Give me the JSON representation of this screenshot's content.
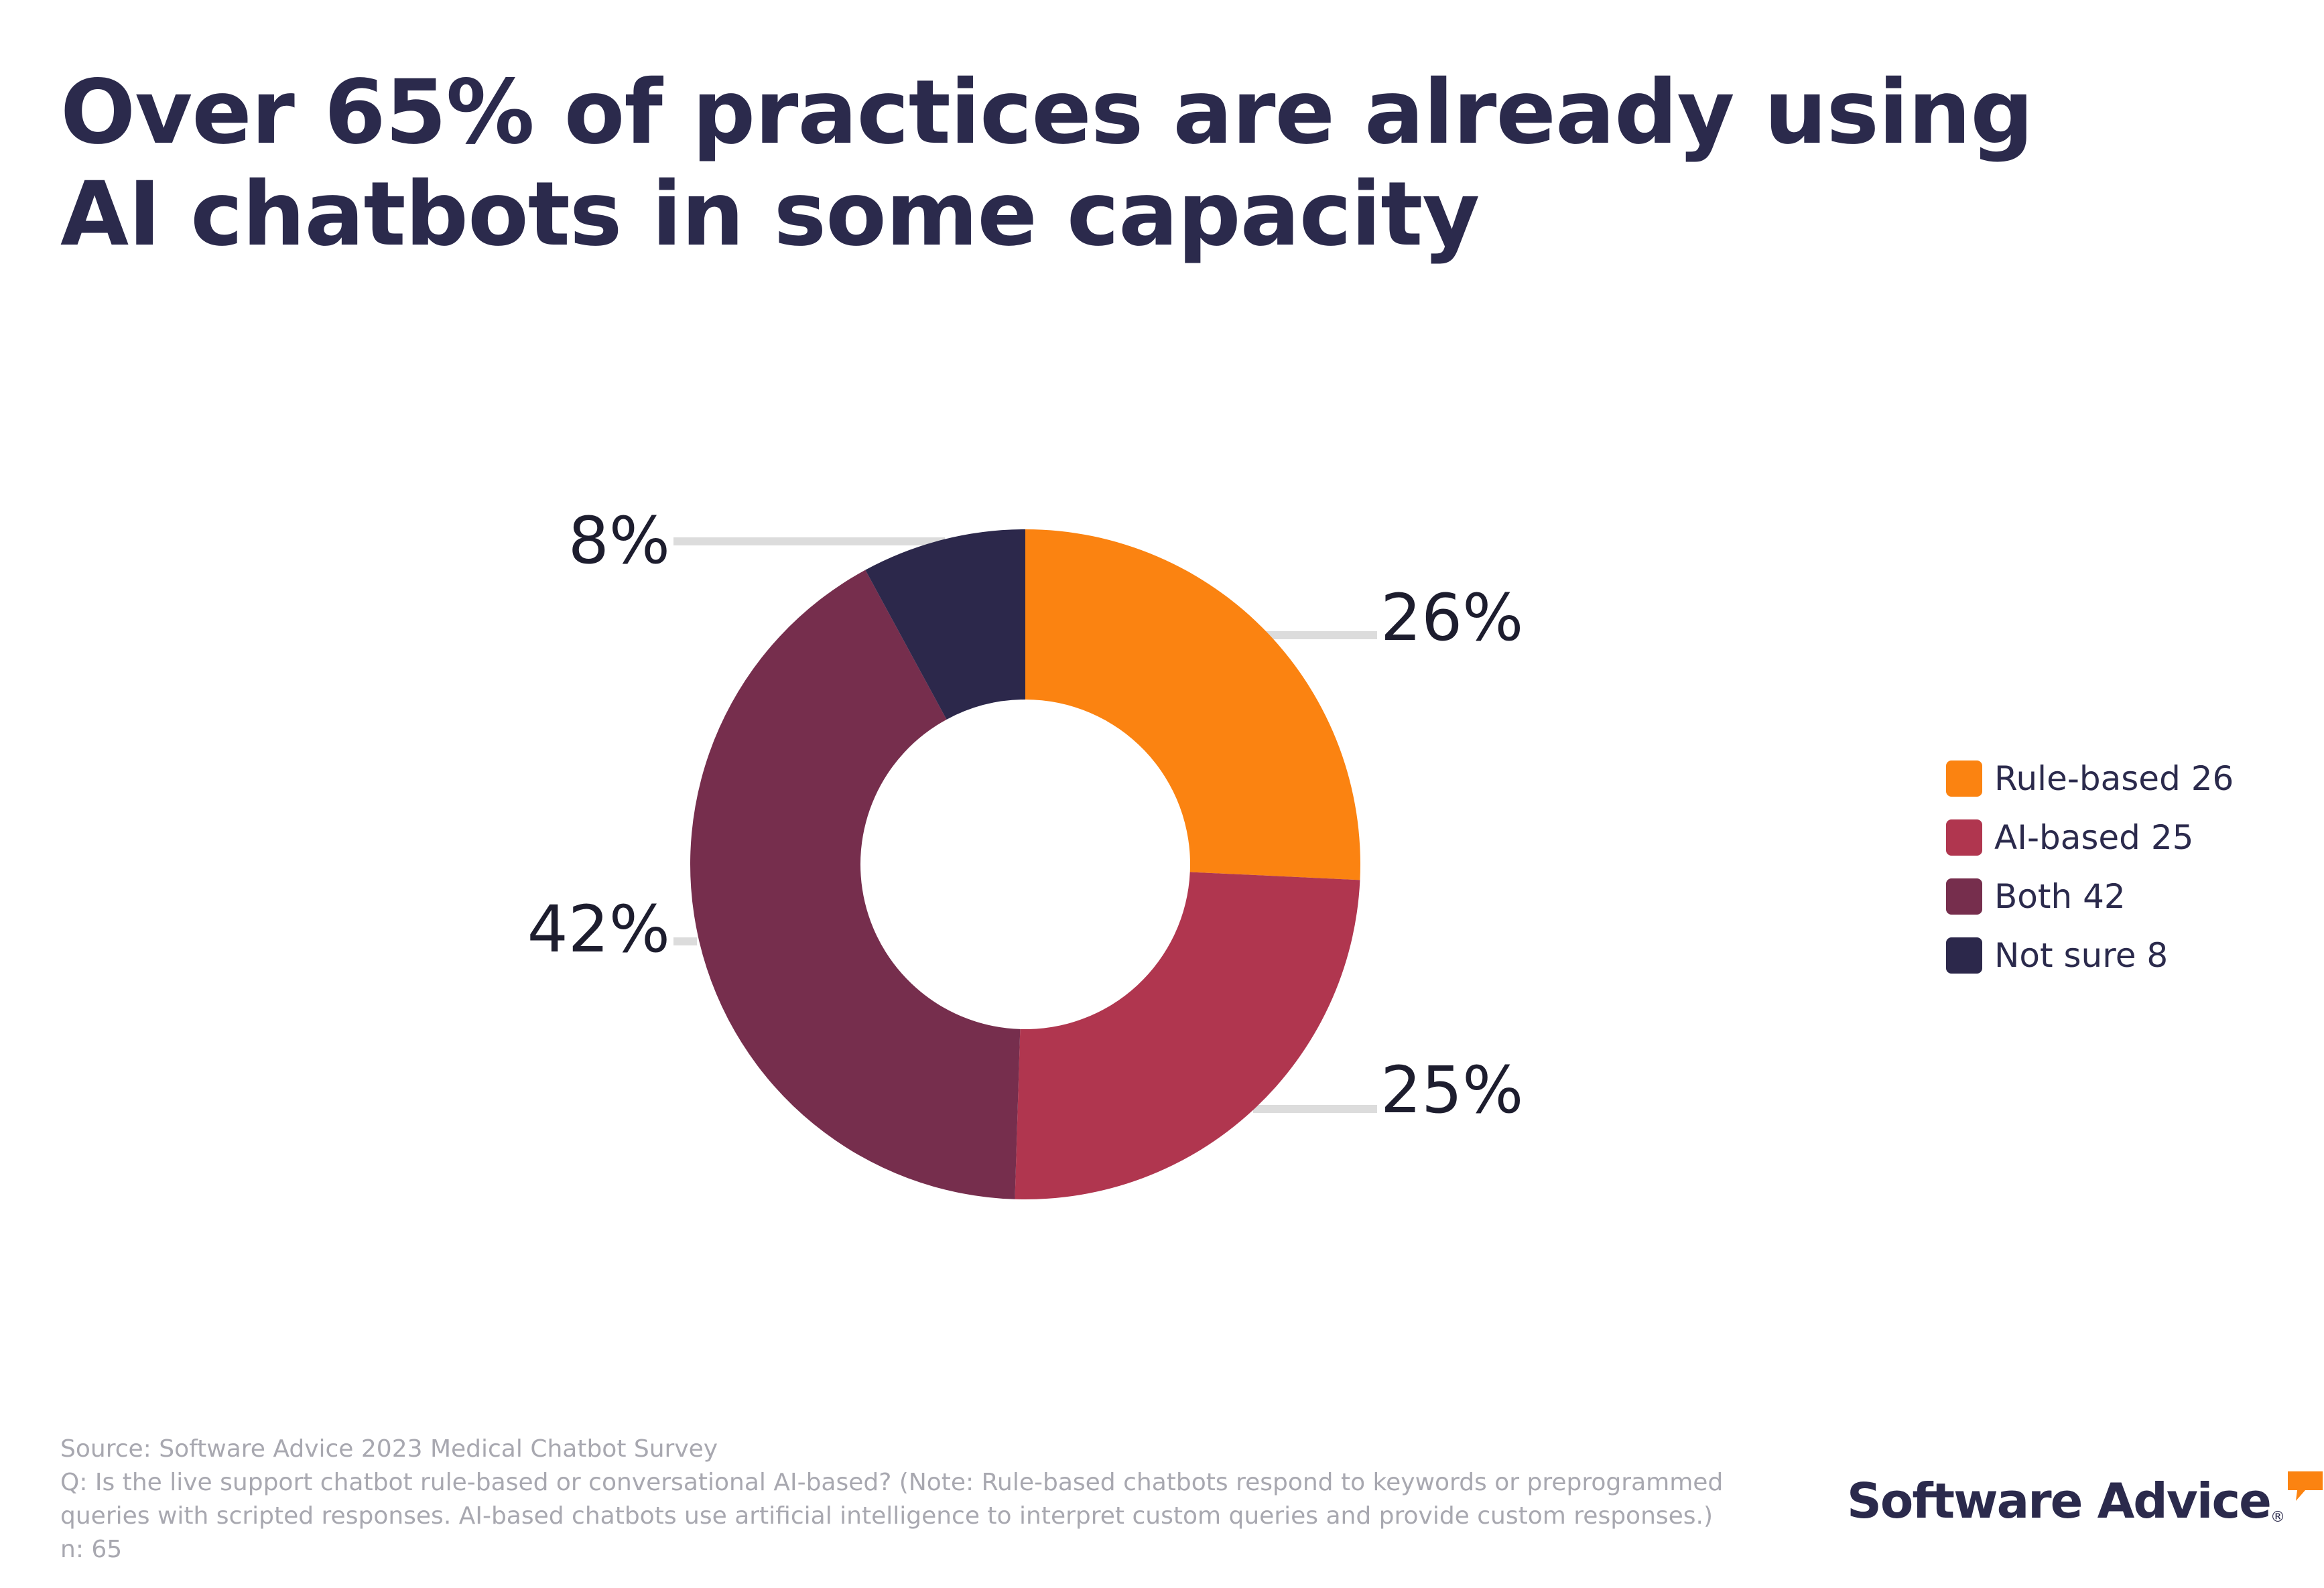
{
  "title": "Over 65% of practices are already using AI chatbots in some capacity",
  "chart_data": {
    "type": "pie",
    "variant": "donut",
    "title": "Over 65% of practices are already using AI chatbots in some capacity",
    "slices": [
      {
        "name": "Rule-based",
        "value": 26,
        "label": "26%",
        "legend": "Rule-based 26",
        "color": "#fb8311"
      },
      {
        "name": "AI-based",
        "value": 25,
        "label": "25%",
        "legend": "AI-based 25",
        "color": "#b0364f"
      },
      {
        "name": "Both",
        "value": 42,
        "label": "42%",
        "legend": "Both 42",
        "color": "#762e4d"
      },
      {
        "name": "Not sure",
        "value": 8,
        "label": "8%",
        "legend": "Not sure 8",
        "color": "#2c284b"
      }
    ],
    "legend_position": "right",
    "leader_line_color": "#dcdcdc"
  },
  "footer": {
    "source": "Source: Software Advice 2023 Medical Chatbot Survey",
    "question_line1": "Q: Is the live support chatbot rule-based or conversational AI-based? (Note: Rule-based chatbots respond to keywords or preprogrammed",
    "question_line2": "queries with scripted responses. AI-based chatbots use artificial intelligence to interpret custom queries and provide custom responses.)",
    "sample": "n: 65"
  },
  "brand": {
    "name": "Software Advice",
    "registered_mark": "®",
    "accent_color": "#fb8311"
  }
}
